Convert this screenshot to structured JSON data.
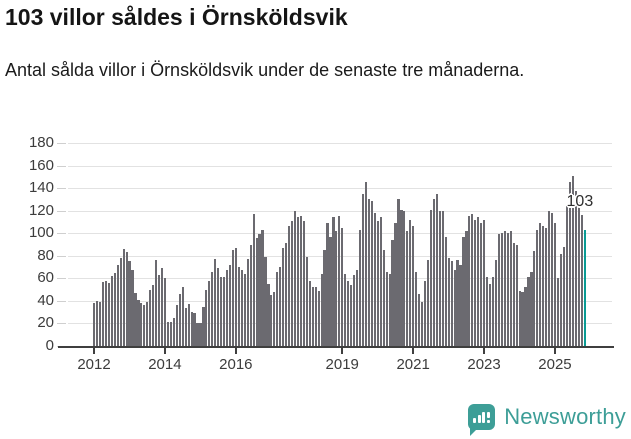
{
  "header": {
    "title": "103 villor såldes i Örnsköldsvik",
    "subtitle": "Antal sålda villor i Örnsköldsvik under de senaste tre månaderna."
  },
  "chart_data": {
    "type": "bar",
    "title": "103 villor såldes i Örnsköldsvik",
    "subtitle": "Antal sålda villor i Örnsköldsvik under de senaste tre månaderna.",
    "ylabel": "",
    "xlabel": "",
    "ylim": [
      0,
      180
    ],
    "grid": true,
    "y_ticks": [
      "0",
      "20",
      "40",
      "60",
      "80",
      "100",
      "120",
      "140",
      "160",
      "180"
    ],
    "x_ticks": [
      {
        "label": "2012",
        "month_index": 0
      },
      {
        "label": "2014",
        "month_index": 24
      },
      {
        "label": "2016",
        "month_index": 48
      },
      {
        "label": "2019",
        "month_index": 84
      },
      {
        "label": "2021",
        "month_index": 108
      },
      {
        "label": "2023",
        "month_index": 132
      },
      {
        "label": "2025",
        "month_index": 156
      }
    ],
    "series_period": "monthly, rolling 3-month totals, Jan 2012 – late 2025",
    "values": [
      38,
      40,
      39,
      57,
      58,
      56,
      62,
      65,
      72,
      78,
      86,
      83,
      75,
      67,
      47,
      41,
      38,
      36,
      39,
      50,
      54,
      76,
      63,
      69,
      60,
      21,
      21,
      25,
      36,
      46,
      52,
      34,
      37,
      30,
      29,
      20,
      20,
      35,
      50,
      58,
      66,
      77,
      69,
      61,
      61,
      67,
      72,
      85,
      87,
      70,
      67,
      64,
      77,
      90,
      117,
      96,
      99,
      103,
      79,
      55,
      45,
      48,
      66,
      70,
      87,
      91,
      106,
      111,
      120,
      114,
      115,
      111,
      79,
      58,
      52,
      52,
      49,
      64,
      85,
      109,
      97,
      114,
      102,
      115,
      105,
      64,
      58,
      54,
      63,
      67,
      103,
      135,
      145,
      130,
      129,
      118,
      111,
      114,
      85,
      66,
      64,
      94,
      109,
      130,
      121,
      120,
      102,
      112,
      106,
      66,
      46,
      39,
      58,
      76,
      121,
      130,
      135,
      120,
      120,
      97,
      78,
      75,
      67,
      76,
      72,
      97,
      102,
      115,
      117,
      112,
      114,
      109,
      112,
      61,
      55,
      61,
      76,
      99,
      100,
      102,
      100,
      102,
      91,
      90,
      49,
      48,
      52,
      61,
      66,
      84,
      103,
      109,
      106,
      105,
      120,
      118,
      109,
      60,
      82,
      88,
      124,
      145,
      151,
      137,
      128,
      116,
      103
    ],
    "bar_color": "#6b6a70",
    "highlight": {
      "index": 166,
      "value": 103,
      "label": "103",
      "color": "#0a9b94"
    }
  },
  "footer": {
    "brand": "Newsworthy",
    "brand_color": "#3d9e97"
  }
}
